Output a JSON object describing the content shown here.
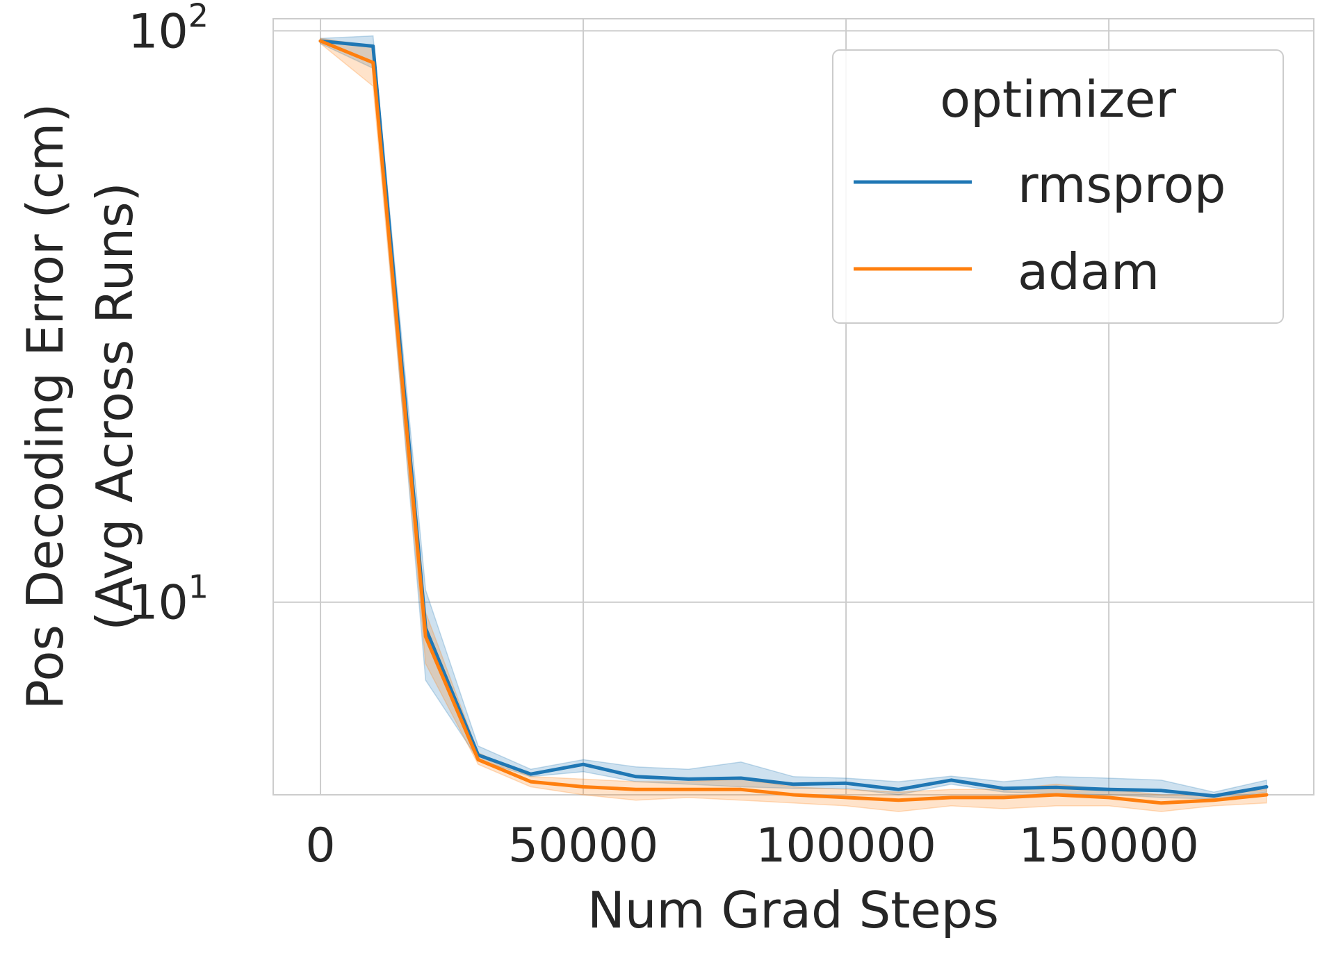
{
  "chart_data": {
    "type": "line",
    "xlabel": "Num Grad Steps",
    "ylabel_lines": [
      "Pos Decoding Error (cm)",
      "(Avg Across Runs)"
    ],
    "y_scale": "log",
    "ylim": [
      4.6,
      105
    ],
    "xlim": [
      -9000,
      189000
    ],
    "grid": true,
    "x_ticks": [
      0,
      50000,
      100000,
      150000
    ],
    "x_tick_labels": [
      "0",
      "50000",
      "100000",
      "150000"
    ],
    "y_ticks": [
      10,
      100
    ],
    "y_tick_labels": [
      {
        "base": "10",
        "exp": "1"
      },
      {
        "base": "10",
        "exp": "2"
      }
    ],
    "legend": {
      "title": "optimizer",
      "position": "top-right"
    },
    "x": [
      0,
      10000,
      20000,
      30000,
      40000,
      50000,
      60000,
      70000,
      80000,
      90000,
      100000,
      110000,
      120000,
      130000,
      140000,
      150000,
      160000,
      170000,
      180000
    ],
    "series": [
      {
        "name": "rmsprop",
        "color": "#1f77b4",
        "values": [
          96,
          94,
          9.0,
          5.4,
          5.0,
          5.2,
          4.95,
          4.9,
          4.92,
          4.8,
          4.82,
          4.7,
          4.88,
          4.72,
          4.74,
          4.7,
          4.68,
          4.58,
          4.75
        ],
        "ci_low": [
          95,
          86,
          7.3,
          5.3,
          4.95,
          5.05,
          4.85,
          4.8,
          4.75,
          4.72,
          4.72,
          4.6,
          4.8,
          4.65,
          4.62,
          4.6,
          4.55,
          4.52,
          4.65
        ],
        "ci_high": [
          97,
          98,
          10.5,
          5.6,
          5.1,
          5.3,
          5.15,
          5.1,
          5.25,
          4.95,
          4.92,
          4.85,
          4.96,
          4.85,
          4.95,
          4.92,
          4.88,
          4.65,
          4.88
        ]
      },
      {
        "name": "adam",
        "color": "#ff7f0e",
        "values": [
          96,
          88,
          8.7,
          5.3,
          4.85,
          4.75,
          4.7,
          4.7,
          4.7,
          4.6,
          4.55,
          4.5,
          4.55,
          4.55,
          4.6,
          4.55,
          4.45,
          4.5,
          4.6
        ],
        "ci_low": [
          95,
          80,
          7.8,
          5.2,
          4.75,
          4.6,
          4.5,
          4.55,
          4.5,
          4.45,
          4.4,
          4.3,
          4.4,
          4.35,
          4.4,
          4.4,
          4.3,
          4.4,
          4.45
        ],
        "ci_high": [
          97,
          94,
          9.6,
          5.45,
          4.95,
          4.9,
          4.85,
          4.85,
          4.9,
          4.75,
          4.7,
          4.65,
          4.7,
          4.7,
          4.8,
          4.7,
          4.6,
          4.6,
          4.7
        ]
      }
    ]
  }
}
